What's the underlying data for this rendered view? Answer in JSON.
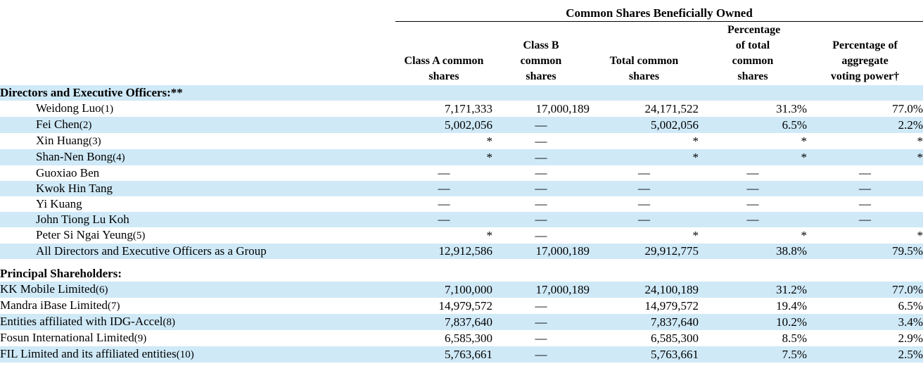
{
  "super_header": "Common Shares Beneficially Owned",
  "columns": [
    {
      "lines": [
        "Class A common",
        "shares"
      ]
    },
    {
      "lines": [
        "Class B",
        "common",
        "shares"
      ]
    },
    {
      "lines": [
        "Total common",
        "shares"
      ]
    },
    {
      "lines": [
        "Percentage",
        "of total",
        "common",
        "shares"
      ]
    },
    {
      "lines": [
        "Percentage of",
        "aggregate",
        "voting power†"
      ]
    }
  ],
  "sections": [
    {
      "title": "Directors and Executive Officers:**",
      "indent": true,
      "rows": [
        {
          "name": "Weidong Luo",
          "note": "(1)",
          "values": [
            "7,171,333",
            "17,000,189",
            "24,171,522",
            "31.3%",
            "77.0%"
          ]
        },
        {
          "name": "Fei Chen",
          "note": "(2)",
          "values": [
            "5,002,056",
            "—",
            "5,002,056",
            "6.5%",
            "2.2%"
          ]
        },
        {
          "name": "Xin Huang",
          "note": "(3)",
          "values": [
            "*",
            "—",
            "*",
            "*",
            "*"
          ]
        },
        {
          "name": "Shan-Nen Bong",
          "note": "(4)",
          "values": [
            "*",
            "—",
            "*",
            "*",
            "*"
          ]
        },
        {
          "name": "Guoxiao Ben",
          "note": "",
          "values": [
            "—",
            "—",
            "—",
            "—",
            "—"
          ]
        },
        {
          "name": "Kwok Hin Tang",
          "note": "",
          "values": [
            "—",
            "—",
            "—",
            "—",
            "—"
          ]
        },
        {
          "name": "Yi Kuang",
          "note": "",
          "values": [
            "—",
            "—",
            "—",
            "—",
            "—"
          ]
        },
        {
          "name": "John Tiong Lu Koh",
          "note": "",
          "values": [
            "—",
            "—",
            "—",
            "—",
            "—"
          ]
        },
        {
          "name": "Peter Si Ngai Yeung",
          "note": "(5)",
          "values": [
            "*",
            "—",
            "*",
            "*",
            "*"
          ]
        },
        {
          "name": "All Directors and Executive Officers as a Group",
          "note": "",
          "values": [
            "12,912,586",
            "17,000,189",
            "29,912,775",
            "38.8%",
            "79.5%"
          ]
        }
      ]
    },
    {
      "title": "Principal Shareholders:",
      "indent": false,
      "rows": [
        {
          "name": "KK Mobile Limited",
          "note": "(6)",
          "values": [
            "7,100,000",
            "17,000,189",
            "24,100,189",
            "31.2%",
            "77.0%"
          ]
        },
        {
          "name": "Mandra iBase Limited",
          "note": "(7)",
          "values": [
            "14,979,572",
            "—",
            "14,979,572",
            "19.4%",
            "6.5%"
          ]
        },
        {
          "name": "Entities affiliated with IDG-Accel",
          "note": "(8)",
          "values": [
            "7,837,640",
            "—",
            "7,837,640",
            "10.2%",
            "3.4%"
          ]
        },
        {
          "name": "Fosun International Limited",
          "note": "(9)",
          "values": [
            "6,585,300",
            "—",
            "6,585,300",
            "8.5%",
            "2.9%"
          ]
        },
        {
          "name": "FIL Limited and its affiliated entities",
          "note": "(10)",
          "values": [
            "5,763,661",
            "—",
            "5,763,661",
            "7.5%",
            "2.5%"
          ]
        }
      ]
    }
  ]
}
